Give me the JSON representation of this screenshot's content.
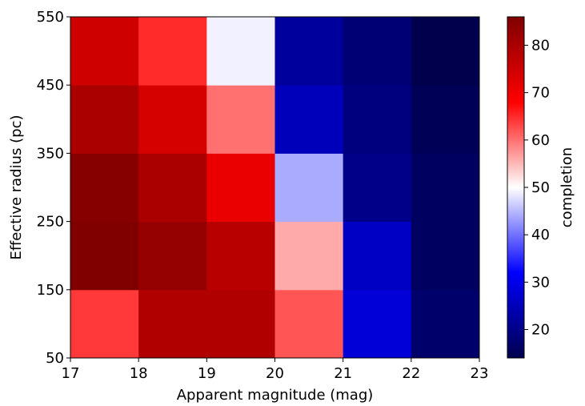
{
  "chart_data": {
    "type": "heatmap",
    "xlabel": "Apparent magnitude (mag)",
    "ylabel": "Effective radius (pc)",
    "colorbar_label": "completion",
    "colormap": "seismic",
    "x_edges": [
      17,
      18,
      19,
      20,
      21,
      22,
      23
    ],
    "y_edges": [
      50,
      150,
      250,
      350,
      450,
      550
    ],
    "xlim": [
      17,
      23
    ],
    "ylim": [
      50,
      550
    ],
    "x_ticks": [
      "17",
      "18",
      "19",
      "20",
      "21",
      "22",
      "23"
    ],
    "y_ticks": [
      "50",
      "150",
      "250",
      "350",
      "450",
      "550"
    ],
    "color_range": [
      14,
      86
    ],
    "colorbar_ticks": [
      "20",
      "30",
      "40",
      "50",
      "60",
      "70",
      "80"
    ],
    "values": [
      [
        64,
        79,
        79,
        62,
        28,
        17
      ],
      [
        86,
        83,
        78,
        56,
        26,
        16
      ],
      [
        85,
        80,
        71,
        44,
        20,
        16
      ],
      [
        80,
        74,
        60,
        25,
        19,
        15
      ],
      [
        75,
        65,
        49,
        22,
        18,
        14
      ]
    ]
  }
}
